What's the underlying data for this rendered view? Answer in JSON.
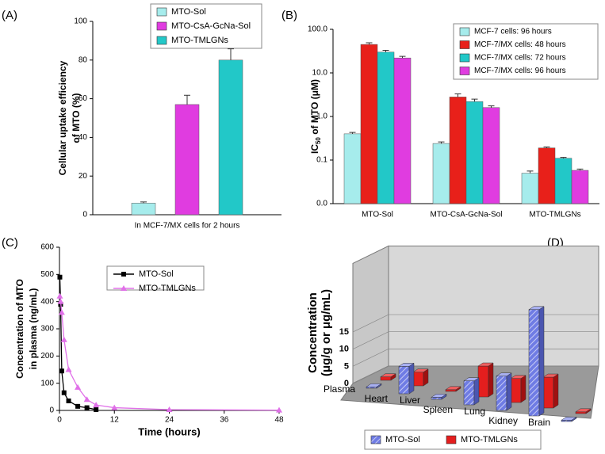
{
  "chart_data": [
    {
      "type": "bar",
      "label": "(A)",
      "ylabel": [
        "Cellular uptake efficiency",
        "of MTO (%)"
      ],
      "categories": [
        "In MCF-7/MX cells for 2 hours"
      ],
      "series": [
        {
          "name": "MTO-Sol",
          "color": "#a6ecec",
          "values": [
            6
          ],
          "errors": [
            0.6
          ]
        },
        {
          "name": "MTO-CsA-GcNa-Sol",
          "color": "#e03ce0",
          "values": [
            57
          ],
          "errors": [
            4.8
          ]
        },
        {
          "name": "MTO-TMLGNs",
          "color": "#22c8c8",
          "values": [
            80
          ],
          "errors": [
            5.8
          ]
        }
      ],
      "ylim": [
        0,
        100
      ],
      "yticks": [
        0,
        20,
        40,
        60,
        80,
        100
      ],
      "grid": false
    },
    {
      "type": "bar",
      "label": "(B)",
      "log_scale": true,
      "ylabel": [
        "IC",
        "50",
        " of MTO (μM)"
      ],
      "categories": [
        "MTO-Sol",
        "MTO-CsA-GcNa-Sol",
        "MTO-TMLGNs"
      ],
      "series": [
        {
          "name": "MCF-7 cells: 96 hours",
          "color": "#a6ecec",
          "values": [
            0.4,
            0.24,
            0.05
          ],
          "errors": [
            0.03,
            0.02,
            0.006
          ]
        },
        {
          "name": "MCF-7/MX cells: 48 hours",
          "color": "#e8201a",
          "values": [
            45,
            2.8,
            0.19
          ],
          "errors": [
            4,
            0.5,
            0.01
          ]
        },
        {
          "name": "MCF-7/MX cells: 72 hours",
          "color": "#22c8c8",
          "values": [
            30,
            2.2,
            0.11
          ],
          "errors": [
            3,
            0.3,
            0.005
          ]
        },
        {
          "name": "MCF-7/MX cells: 96 hours",
          "color": "#e03ce0",
          "values": [
            22,
            1.6,
            0.058
          ],
          "errors": [
            2,
            0.15,
            0.004
          ]
        }
      ],
      "ylim": [
        0.01,
        100
      ],
      "yticks": [
        {
          "value": 0.01,
          "label": "0.0"
        },
        0.1,
        {
          "value": 1,
          "label": "1.0"
        },
        {
          "value": 10,
          "label": "10.0"
        },
        {
          "value": 100,
          "label": "100.0"
        }
      ],
      "grid": false
    },
    {
      "type": "line",
      "label": "(C)",
      "xlabel": "Time (hours)",
      "ylabel": [
        "Concentration of MTO",
        "in plasma (ng/mL)"
      ],
      "series": [
        {
          "name": "MTO-Sol",
          "color": "#000000",
          "marker": "square",
          "x": [
            0.083,
            0.25,
            0.5,
            1,
            2,
            4,
            6,
            8
          ],
          "values": [
            490,
            390,
            145,
            65,
            35,
            15,
            10,
            3
          ]
        },
        {
          "name": "MTO-TMLGNs",
          "color": "#e070e8",
          "marker": "triangle",
          "x": [
            0.083,
            0.25,
            0.5,
            1,
            2,
            4,
            6,
            8,
            12,
            24,
            48
          ],
          "values": [
            420,
            400,
            360,
            260,
            150,
            85,
            40,
            20,
            10,
            3,
            1
          ]
        }
      ],
      "xlim": [
        0,
        48
      ],
      "xticks": [
        0,
        12,
        24,
        36,
        48
      ],
      "ylim": [
        0,
        600
      ],
      "yticks": [
        0,
        100,
        200,
        300,
        400,
        500,
        600
      ]
    },
    {
      "type": "bar3d",
      "label": "(D)",
      "ylabel": [
        "Concentration",
        "(μg/g or μg/mL)"
      ],
      "categories": [
        "Plasma",
        "Heart",
        "Liver",
        "Spleen",
        "Lung",
        "Kidney",
        "Brain"
      ],
      "series": [
        {
          "name": "MTO-Sol",
          "color": "#6f7ce4",
          "values": [
            0.4,
            8,
            0.6,
            7,
            10,
            31,
            0.4
          ]
        },
        {
          "name": "MTO-TMLGNs",
          "color": "#e41e1e",
          "values": [
            1,
            4,
            0.5,
            9,
            7,
            9,
            0.5
          ]
        }
      ],
      "ylim": [
        0,
        35
      ],
      "yticks": [
        0,
        5,
        10,
        15
      ],
      "grid": true
    }
  ]
}
